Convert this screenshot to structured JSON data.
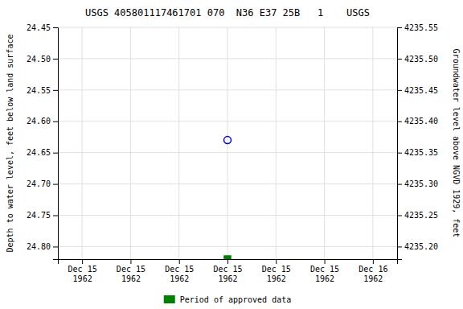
{
  "chart_data": {
    "type": "scatter",
    "title": "USGS 405801117461701 070  N36 E37 25B   1    USGS",
    "ylabel": "Depth to water level, feet below land surface",
    "y2label": "Groundwater level above NGVD 1929, feet",
    "categories": [
      "Dec 15\n1962",
      "Dec 15\n1962",
      "Dec 15\n1962",
      "Dec 15\n1962",
      "Dec 15\n1962",
      "Dec 15\n1962",
      "Dec 16\n1962"
    ],
    "series": [
      {
        "color": "#0000cc",
        "marker": "circle-open",
        "values": [
          null,
          null,
          null,
          24.63,
          null,
          null,
          null
        ]
      },
      {
        "name": "Period of approved data",
        "color": "#008000",
        "marker": "square",
        "values": [
          null,
          null,
          null,
          24.82,
          null,
          null,
          null
        ]
      }
    ],
    "ylim": [
      24.82,
      24.45
    ],
    "yticks": [
      24.45,
      {
        "value": 24.5,
        "label": "24.50"
      },
      24.55,
      {
        "value": 24.6,
        "label": "24.60"
      },
      24.65,
      {
        "value": 24.7,
        "label": "24.70"
      },
      24.75,
      {
        "value": 24.8,
        "label": "24.80"
      }
    ],
    "y2lim": [
      4235.18,
      4235.55
    ],
    "y2ticks": [
      4235.55,
      {
        "value": 4235.5,
        "label": "4235.50"
      },
      4235.45,
      {
        "value": 4235.4,
        "label": "4235.40"
      },
      4235.35,
      {
        "value": 4235.3,
        "label": "4235.30"
      },
      4235.25,
      {
        "value": 4235.2,
        "label": "4235.20"
      }
    ],
    "grid": true,
    "legend": "bottom"
  }
}
